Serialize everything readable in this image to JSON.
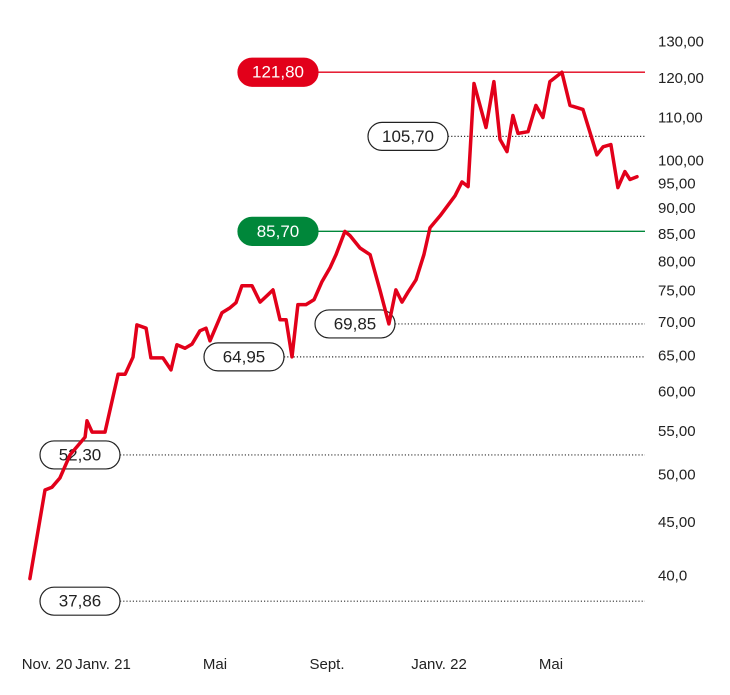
{
  "chart_data": {
    "type": "line",
    "log_scale": true,
    "grid": false,
    "series": [
      {
        "color": "#e2001a",
        "x": [
          -0.61,
          -0.07,
          0.18,
          0.46,
          0.82,
          1.36,
          1.43,
          1.61,
          2.07,
          2.54,
          2.79,
          3.07,
          3.21,
          3.54,
          3.71,
          4.14,
          4.43,
          4.64,
          4.93,
          5.18,
          5.46,
          5.68,
          5.82,
          6.25,
          6.54,
          6.75,
          6.96,
          7.32,
          7.61,
          7.89,
          8.07,
          8.32,
          8.54,
          8.75,
          8.96,
          9.25,
          9.54,
          9.82,
          10.11,
          10.32,
          10.64,
          10.82,
          11.18,
          11.54,
          11.89,
          12.21,
          12.46,
          12.68,
          12.89,
          13.18,
          13.46,
          13.68,
          14.04,
          14.57,
          14.82,
          15.04,
          15.25,
          15.68,
          15.96,
          16.18,
          16.43,
          16.64,
          16.82,
          17.18,
          17.46,
          17.71,
          17.96,
          18.39,
          18.68,
          19.14,
          19.64,
          19.86,
          20.14,
          20.39,
          20.64,
          20.82,
          21.07
        ],
        "values": [
          39.8,
          48.4,
          48.7,
          49.7,
          52.3,
          54.4,
          56.4,
          55.0,
          55.0,
          62.5,
          62.5,
          64.9,
          69.7,
          69.2,
          64.8,
          64.8,
          63.1,
          66.7,
          66.2,
          66.8,
          68.8,
          69.2,
          67.3,
          71.6,
          72.4,
          73.2,
          76.0,
          76.0,
          73.3,
          74.5,
          75.3,
          70.5,
          70.5,
          64.95,
          72.9,
          72.9,
          73.7,
          76.7,
          79.1,
          81.4,
          85.7,
          84.9,
          82.6,
          81.4,
          75.3,
          69.85,
          75.3,
          73.3,
          74.9,
          77.0,
          81.4,
          86.4,
          88.7,
          92.7,
          95.6,
          94.6,
          118.8,
          107.8,
          119.3,
          105.0,
          102.2,
          110.7,
          106.4,
          106.8,
          113.2,
          110.2,
          119.3,
          121.8,
          113.2,
          112.2,
          101.5,
          103.3,
          103.8,
          94.4,
          97.8,
          96.1,
          96.7
        ]
      }
    ],
    "xlim": [
      -1,
      22
    ],
    "xticks": [
      {
        "value": 0,
        "label": "Nov. 20"
      },
      {
        "value": 2,
        "label": "Janv. 21"
      },
      {
        "value": 6,
        "label": "Mai"
      },
      {
        "value": 10,
        "label": "Sept."
      },
      {
        "value": 14,
        "label": "Janv. 22"
      },
      {
        "value": 18,
        "label": "Mai"
      }
    ],
    "ylim": [
      36,
      134
    ],
    "yticks": [
      {
        "value": 130,
        "label": "130,00"
      },
      {
        "value": 120,
        "label": "120,00"
      },
      {
        "value": 110,
        "label": "110,00"
      },
      {
        "value": 100,
        "label": "100,00"
      },
      {
        "value": 95,
        "label": "95,00"
      },
      {
        "value": 90,
        "label": "90,00"
      },
      {
        "value": 85,
        "label": "85,00"
      },
      {
        "value": 80,
        "label": "80,00"
      },
      {
        "value": 75,
        "label": "75,00"
      },
      {
        "value": 70,
        "label": "70,00"
      },
      {
        "value": 65,
        "label": "65,00"
      },
      {
        "value": 60,
        "label": "60,00"
      },
      {
        "value": 55,
        "label": "55,00"
      },
      {
        "value": 50,
        "label": "50,00"
      },
      {
        "value": 45,
        "label": "45,00"
      },
      {
        "value": 40,
        "label": "40,0"
      }
    ],
    "reference_lines": [
      {
        "value": 121.8,
        "label": "121,80",
        "color": "#e2001a",
        "style": "solid"
      },
      {
        "value": 105.7,
        "label": "105,70",
        "color": "#333333",
        "style": "dotted"
      },
      {
        "value": 85.7,
        "label": "85,70",
        "color": "#00873a",
        "style": "solid"
      },
      {
        "value": 69.85,
        "label": "69,85",
        "color": "#333333",
        "style": "dotted"
      },
      {
        "value": 64.95,
        "label": "64,95",
        "color": "#333333",
        "style": "dotted"
      },
      {
        "value": 52.3,
        "label": "52,30",
        "color": "#333333",
        "style": "dotted"
      },
      {
        "value": 37.86,
        "label": "37,86",
        "color": "#333333",
        "style": "dotted"
      }
    ]
  }
}
